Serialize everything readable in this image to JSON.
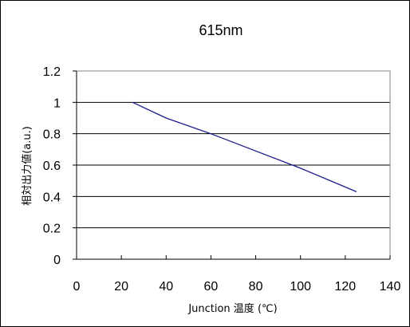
{
  "chart_data": {
    "type": "line",
    "title": "615nm",
    "xlabel": "Junction 温度 (℃)",
    "ylabel": "相対出力値(a.u.)",
    "xlim": [
      0,
      140
    ],
    "ylim": [
      0,
      1.2
    ],
    "x_ticks": [
      "0",
      "20",
      "40",
      "60",
      "80",
      "100",
      "120",
      "140"
    ],
    "y_ticks": [
      "0",
      "0.2",
      "0.4",
      "0.6",
      "0.8",
      "1",
      "1.2"
    ],
    "grid": "horizontal",
    "series": [
      {
        "color": "#1a1a8c",
        "x": [
          25,
          40,
          60,
          80,
          100,
          125
        ],
        "y": [
          1.0,
          0.9,
          0.8,
          0.69,
          0.58,
          0.43
        ]
      }
    ]
  }
}
